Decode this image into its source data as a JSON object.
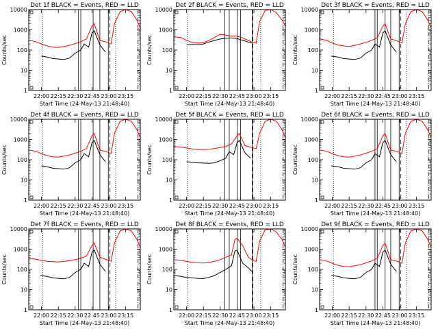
{
  "chart_data": [
    {
      "type": "line",
      "title": "Det 1f  BLACK = Events,  RED = LLD",
      "xlabel": "Start Time (24-May-13 21:48:40)",
      "ylabel": "Counts/sec",
      "yscale": "log",
      "ylim": [
        1,
        10000
      ],
      "xlim": [
        "21:48:40",
        "23:28:00"
      ],
      "xticks": [
        "22:00",
        "22:15",
        "22:30",
        "22:45",
        "23:00",
        "23:15"
      ],
      "yticks": [
        "1",
        "10",
        "100",
        "1000",
        "10000"
      ],
      "series": [
        {
          "color": "#000000",
          "x": [
            "22:00",
            "22:05",
            "22:10",
            "22:15",
            "22:20",
            "22:25",
            "22:30",
            "22:35",
            "22:38",
            "22:42",
            "22:45",
            "22:47",
            "22:52",
            "22:57"
          ],
          "values": [
            50,
            45,
            38,
            36,
            34,
            40,
            70,
            100,
            200,
            140,
            700,
            900,
            180,
            80
          ]
        },
        {
          "color": "#ff0000",
          "x": [
            "21:49",
            "21:55",
            "22:00",
            "22:05",
            "22:10",
            "22:15",
            "22:20",
            "22:25",
            "22:30",
            "22:35",
            "22:40",
            "22:45",
            "22:47",
            "22:52",
            "22:58",
            "23:02",
            "23:05",
            "23:10",
            "23:15",
            "23:20",
            "23:25",
            "23:28"
          ],
          "values": [
            300,
            260,
            200,
            160,
            140,
            135,
            150,
            170,
            210,
            260,
            350,
            1500,
            2000,
            300,
            250,
            200,
            2000,
            8000,
            10000,
            8000,
            3000,
            1200
          ]
        }
      ]
    },
    {
      "type": "line",
      "title": "Det 2f  BLACK = Events,  RED = LLD",
      "xlabel": "Start Time (24-May-13 21:48:40)",
      "ylabel": "Counts/sec",
      "yscale": "log",
      "ylim": [
        1,
        10000
      ],
      "xlim": [
        "21:48:40",
        "23:28:00"
      ],
      "xticks": [
        "22:00",
        "22:15",
        "22:30",
        "22:45",
        "23:00",
        "23:15"
      ],
      "yticks": [
        "1",
        "10",
        "100",
        "1000",
        "10000"
      ],
      "series": [
        {
          "color": "#000000",
          "x": [
            "22:00",
            "22:05",
            "22:10",
            "22:15",
            "22:20",
            "22:25",
            "22:30",
            "22:35",
            "22:40",
            "22:45",
            "22:50",
            "22:55",
            "22:58"
          ],
          "values": [
            180,
            190,
            180,
            200,
            250,
            300,
            350,
            380,
            400,
            370,
            300,
            250,
            220
          ]
        },
        {
          "color": "#ff0000",
          "x": [
            "21:49",
            "21:55",
            "22:00",
            "22:05",
            "22:10",
            "22:15",
            "22:20",
            "22:25",
            "22:30",
            "22:35",
            "22:40",
            "22:45",
            "22:50",
            "22:55",
            "22:58",
            "23:02",
            "23:05",
            "23:10",
            "23:15",
            "23:20",
            "23:25",
            "23:28"
          ],
          "values": [
            450,
            420,
            300,
            240,
            220,
            230,
            300,
            420,
            600,
            550,
            500,
            480,
            400,
            300,
            250,
            220,
            2500,
            9000,
            10000,
            7000,
            3000,
            1500
          ]
        }
      ]
    },
    {
      "type": "line",
      "title": "Det 3f  BLACK = Events,  RED = LLD",
      "xlabel": "Start Time (24-May-13 21:48:40)",
      "ylabel": "Counts/sec",
      "yscale": "log",
      "ylim": [
        1,
        10000
      ],
      "xlim": [
        "21:48:40",
        "23:28:00"
      ],
      "xticks": [
        "22:00",
        "22:15",
        "22:30",
        "22:45",
        "23:00",
        "23:15"
      ],
      "yticks": [
        "1",
        "10",
        "100",
        "1000",
        "10000"
      ],
      "series": [
        {
          "color": "#000000",
          "x": [
            "21:59",
            "22:05",
            "22:10",
            "22:15",
            "22:20",
            "22:25",
            "22:30",
            "22:35",
            "22:38",
            "22:42",
            "22:45",
            "22:47",
            "22:52",
            "22:57"
          ],
          "values": [
            50,
            45,
            38,
            36,
            34,
            40,
            70,
            100,
            200,
            140,
            700,
            900,
            180,
            80
          ]
        },
        {
          "color": "#ff0000",
          "x": [
            "21:49",
            "21:55",
            "22:00",
            "22:05",
            "22:10",
            "22:15",
            "22:20",
            "22:25",
            "22:30",
            "22:35",
            "22:40",
            "22:45",
            "22:47",
            "22:52",
            "22:58",
            "23:02",
            "23:05",
            "23:10",
            "23:15",
            "23:20",
            "23:25",
            "23:28"
          ],
          "values": [
            350,
            300,
            220,
            180,
            160,
            150,
            170,
            200,
            240,
            300,
            400,
            1500,
            2000,
            350,
            280,
            220,
            2000,
            8000,
            10000,
            8000,
            3000,
            1200
          ]
        }
      ]
    },
    {
      "type": "line",
      "title": "Det 4f  BLACK = Events,  RED = LLD",
      "xlabel": "Start Time (24-May-13 21:48:40)",
      "ylabel": "Counts/sec",
      "yscale": "log",
      "ylim": [
        1,
        10000
      ],
      "xlim": [
        "21:48:40",
        "23:28:00"
      ],
      "xticks": [
        "22:00",
        "22:15",
        "22:30",
        "22:45",
        "23:00",
        "23:15"
      ],
      "yticks": [
        "1",
        "10",
        "100",
        "1000",
        "10000"
      ],
      "series": [
        {
          "color": "#000000",
          "x": [
            "22:00",
            "22:05",
            "22:10",
            "22:15",
            "22:20",
            "22:25",
            "22:30",
            "22:35",
            "22:38",
            "22:42",
            "22:45",
            "22:47",
            "22:52",
            "22:57"
          ],
          "values": [
            50,
            45,
            38,
            36,
            34,
            40,
            70,
            100,
            200,
            140,
            700,
            900,
            180,
            80
          ]
        },
        {
          "color": "#ff0000",
          "x": [
            "21:49",
            "21:55",
            "22:00",
            "22:05",
            "22:10",
            "22:15",
            "22:20",
            "22:25",
            "22:30",
            "22:35",
            "22:40",
            "22:45",
            "22:47",
            "22:52",
            "22:58",
            "23:02",
            "23:05",
            "23:10",
            "23:15",
            "23:20",
            "23:25",
            "23:28"
          ],
          "values": [
            300,
            260,
            200,
            160,
            140,
            135,
            150,
            170,
            210,
            260,
            350,
            1500,
            2000,
            300,
            250,
            200,
            2000,
            8000,
            10000,
            8000,
            3000,
            1200
          ]
        }
      ]
    },
    {
      "type": "line",
      "title": "Det 5f  BLACK = Events,  RED = LLD",
      "xlabel": "Start Time (24-May-13 21:48:40)",
      "ylabel": "Counts/sec",
      "yscale": "log",
      "ylim": [
        1,
        10000
      ],
      "xlim": [
        "21:48:40",
        "23:28:00"
      ],
      "xticks": [
        "22:00",
        "22:15",
        "22:30",
        "22:45",
        "23:00",
        "23:15"
      ],
      "yticks": [
        "1",
        "10",
        "100",
        "1000",
        "10000"
      ],
      "series": [
        {
          "color": "#000000",
          "x": [
            "22:00",
            "22:05",
            "22:10",
            "22:15",
            "22:20",
            "22:25",
            "22:30",
            "22:35",
            "22:38",
            "22:42",
            "22:45",
            "22:47",
            "22:52",
            "22:57"
          ],
          "values": [
            80,
            75,
            70,
            68,
            66,
            70,
            90,
            120,
            250,
            180,
            700,
            900,
            220,
            120
          ]
        },
        {
          "color": "#ff0000",
          "x": [
            "21:49",
            "21:55",
            "22:00",
            "22:05",
            "22:10",
            "22:15",
            "22:20",
            "22:25",
            "22:30",
            "22:35",
            "22:40",
            "22:45",
            "22:47",
            "22:52",
            "22:58",
            "23:02",
            "23:05",
            "23:10",
            "23:15",
            "23:20",
            "23:25",
            "23:28"
          ],
          "values": [
            450,
            420,
            380,
            340,
            320,
            320,
            330,
            360,
            400,
            450,
            600,
            1500,
            2000,
            500,
            400,
            350,
            2000,
            8000,
            10000,
            8000,
            3000,
            1200
          ]
        }
      ]
    },
    {
      "type": "line",
      "title": "Det 6f  BLACK = Events,  RED = LLD",
      "xlabel": "Start Time (24-May-13 21:48:40)",
      "ylabel": "Counts/sec",
      "yscale": "log",
      "ylim": [
        1,
        10000
      ],
      "xlim": [
        "21:48:40",
        "23:28:00"
      ],
      "xticks": [
        "22:00",
        "22:15",
        "22:30",
        "22:45",
        "23:00",
        "23:15"
      ],
      "yticks": [
        "1",
        "10",
        "100",
        "1000",
        "10000"
      ],
      "series": [
        {
          "color": "#000000",
          "x": [
            "21:59",
            "22:05",
            "22:10",
            "22:15",
            "22:20",
            "22:25",
            "22:30",
            "22:35",
            "22:38",
            "22:42",
            "22:45",
            "22:47",
            "22:52",
            "22:57"
          ],
          "values": [
            50,
            45,
            38,
            36,
            34,
            40,
            70,
            100,
            200,
            140,
            700,
            900,
            180,
            80
          ]
        },
        {
          "color": "#ff0000",
          "x": [
            "21:49",
            "21:55",
            "22:00",
            "22:05",
            "22:10",
            "22:15",
            "22:20",
            "22:25",
            "22:30",
            "22:35",
            "22:40",
            "22:45",
            "22:47",
            "22:52",
            "22:58",
            "23:02",
            "23:05",
            "23:10",
            "23:15",
            "23:20",
            "23:25",
            "23:28"
          ],
          "values": [
            300,
            260,
            200,
            160,
            140,
            135,
            150,
            170,
            210,
            260,
            350,
            1500,
            2000,
            300,
            250,
            200,
            2000,
            8000,
            10000,
            8000,
            3000,
            1200
          ]
        }
      ]
    },
    {
      "type": "line",
      "title": "Det 7f  BLACK = Events,  RED = LLD",
      "xlabel": "Start Time (24-May-13 21:48:40)",
      "ylabel": "Counts/sec",
      "yscale": "log",
      "ylim": [
        1,
        10000
      ],
      "xlim": [
        "21:48:40",
        "23:28:00"
      ],
      "xticks": [
        "22:00",
        "22:15",
        "22:30",
        "22:45",
        "23:00",
        "23:15"
      ],
      "yticks": [
        "1",
        "10",
        "100",
        "1000",
        "10000"
      ],
      "series": [
        {
          "color": "#000000",
          "x": [
            "21:59",
            "22:05",
            "22:10",
            "22:15",
            "22:20",
            "22:25",
            "22:30",
            "22:35",
            "22:38",
            "22:42",
            "22:45",
            "22:47",
            "22:52",
            "22:57"
          ],
          "values": [
            50,
            45,
            38,
            36,
            34,
            40,
            70,
            100,
            200,
            140,
            700,
            900,
            180,
            80
          ]
        },
        {
          "color": "#ff0000",
          "x": [
            "21:49",
            "21:55",
            "22:00",
            "22:05",
            "22:10",
            "22:15",
            "22:20",
            "22:25",
            "22:30",
            "22:35",
            "22:40",
            "22:45",
            "22:47",
            "22:52",
            "22:58",
            "23:02",
            "23:05",
            "23:10",
            "23:15",
            "23:20",
            "23:25",
            "23:28"
          ],
          "values": [
            350,
            320,
            280,
            250,
            240,
            230,
            250,
            270,
            300,
            350,
            450,
            1500,
            2000,
            400,
            300,
            250,
            2000,
            8000,
            10000,
            8000,
            3000,
            1200
          ]
        }
      ]
    },
    {
      "type": "line",
      "title": "Det 8f  BLACK = Events,  RED = LLD",
      "xlabel": "Start Time (24-May-13 21:48:40)",
      "ylabel": "Counts/sec",
      "yscale": "log",
      "ylim": [
        1,
        10000
      ],
      "xlim": [
        "21:48:40",
        "23:28:00"
      ],
      "xticks": [
        "22:00",
        "22:15",
        "22:30",
        "22:45",
        "23:00",
        "23:15"
      ],
      "yticks": [
        "1",
        "10",
        "100",
        "1000",
        "10000"
      ],
      "series": [
        {
          "color": "#000000",
          "x": [
            "21:49",
            "21:55",
            "22:00",
            "22:05",
            "22:10",
            "22:15",
            "22:20",
            "22:25",
            "22:30",
            "22:35",
            "22:40",
            "22:43",
            "22:45",
            "22:50",
            "22:55",
            "22:58"
          ],
          "values": [
            50,
            45,
            40,
            38,
            36,
            35,
            40,
            50,
            70,
            100,
            150,
            800,
            900,
            200,
            120,
            80
          ]
        },
        {
          "color": "#ff0000",
          "x": [
            "21:49",
            "21:55",
            "22:00",
            "22:05",
            "22:10",
            "22:15",
            "22:20",
            "22:25",
            "22:30",
            "22:35",
            "22:40",
            "22:43",
            "22:45",
            "22:50",
            "22:55",
            "22:58",
            "23:02",
            "23:05",
            "23:10",
            "23:15",
            "23:20",
            "23:25",
            "23:28"
          ],
          "values": [
            300,
            280,
            250,
            220,
            210,
            205,
            220,
            250,
            300,
            400,
            500,
            3000,
            3500,
            1500,
            400,
            300,
            250,
            2500,
            9000,
            10000,
            7000,
            3000,
            1200
          ]
        }
      ]
    },
    {
      "type": "line",
      "title": "Det 9f  BLACK = Events,  RED = LLD",
      "xlabel": "Start Time (24-May-13 21:48:40)",
      "ylabel": "Counts/sec",
      "yscale": "log",
      "ylim": [
        1,
        10000
      ],
      "xlim": [
        "21:48:40",
        "23:28:00"
      ],
      "xticks": [
        "22:00",
        "22:15",
        "22:30",
        "22:45",
        "23:00",
        "23:15"
      ],
      "yticks": [
        "1",
        "10",
        "100",
        "1000",
        "10000"
      ],
      "series": [
        {
          "color": "#000000",
          "x": [
            "21:59",
            "22:05",
            "22:10",
            "22:15",
            "22:20",
            "22:25",
            "22:30",
            "22:35",
            "22:38",
            "22:42",
            "22:45",
            "22:47",
            "22:52",
            "22:57"
          ],
          "values": [
            50,
            45,
            38,
            36,
            34,
            40,
            70,
            100,
            200,
            140,
            700,
            900,
            180,
            80
          ]
        },
        {
          "color": "#ff0000",
          "x": [
            "21:49",
            "21:55",
            "22:00",
            "22:05",
            "22:10",
            "22:15",
            "22:20",
            "22:25",
            "22:30",
            "22:35",
            "22:40",
            "22:45",
            "22:47",
            "22:52",
            "22:58",
            "23:02",
            "23:05",
            "23:10",
            "23:15",
            "23:20",
            "23:25",
            "23:28"
          ],
          "values": [
            300,
            260,
            200,
            160,
            140,
            135,
            150,
            170,
            210,
            260,
            350,
            1500,
            2000,
            300,
            250,
            200,
            2000,
            8000,
            10000,
            8000,
            3000,
            1200
          ]
        }
      ]
    }
  ]
}
